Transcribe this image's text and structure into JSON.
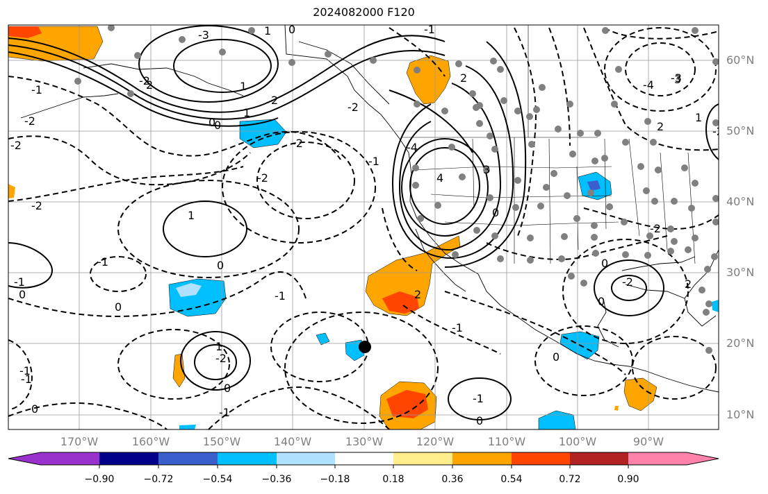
{
  "map": {
    "title": "2024082000 F120",
    "lat_labels": [
      "60°N",
      "50°N",
      "40°N",
      "30°N",
      "20°N",
      "10°N"
    ],
    "lon_labels": [
      "170°W",
      "160°W",
      "150°W",
      "140°W",
      "130°W",
      "120°W",
      "110°W",
      "100°W",
      "90°W"
    ],
    "contour_labels": [
      "-3",
      "-1",
      "1",
      "-2",
      "-2",
      "-2",
      "-1",
      "2",
      "3",
      "2",
      "-2",
      "1",
      "-2",
      "-1",
      "1",
      "0",
      "-1",
      "2",
      "0",
      "0",
      "-1",
      "2",
      "2",
      "0",
      "-2",
      "1",
      "-2",
      "0",
      "-1",
      "0",
      "-1",
      "-1",
      "0",
      "0",
      "-2",
      "-4",
      "4",
      "3",
      "1",
      "-2",
      "0",
      "-1",
      "-4",
      "-3",
      "-2",
      "-1",
      "0",
      "-1",
      "0",
      "-2",
      "2",
      "1",
      "0",
      "0"
    ]
  },
  "colorbar": {
    "tick_labels": [
      "−0.90",
      "−0.72",
      "−0.54",
      "−0.36",
      "−0.18",
      "0.18",
      "0.36",
      "0.54",
      "0.72",
      "0.90"
    ],
    "colors": [
      "#9932cc",
      "#00008b",
      "#3a5fcd",
      "#00bfff",
      "#b0e2ff",
      "#ffffff",
      "#ffec8b",
      "#ffa500",
      "#ff4500",
      "#b22222",
      "#ff82ab"
    ]
  },
  "legend_marker": {
    "name": "black-dot-marker"
  },
  "colors": {
    "orange": "#ffa500",
    "red": "#ff4500",
    "cyan": "#00bfff",
    "blue": "#3a5fcd",
    "grid": "#999999",
    "dots": "#808080"
  }
}
